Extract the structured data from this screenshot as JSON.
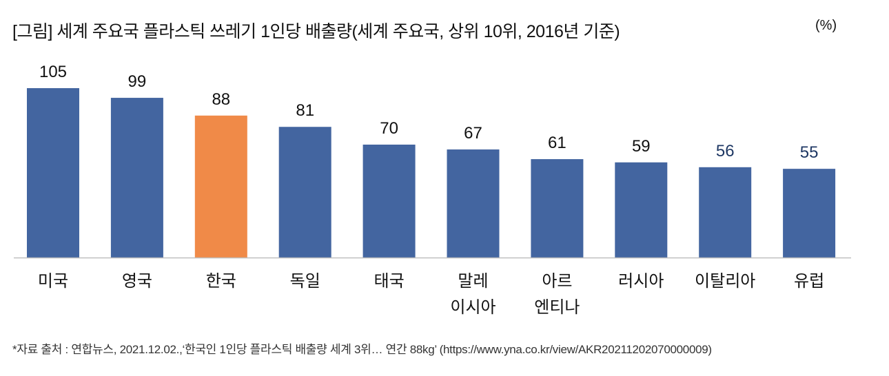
{
  "chart_data": {
    "type": "bar",
    "title": "[그림] 세계 주요국 플라스틱 쓰레기 1인당 배출량(세계 주요국, 상위 10위, 2016년 기준)",
    "unit": "(%)",
    "categories": [
      "미국",
      "영국",
      "한국",
      "독일",
      "태국",
      "말레\n이시아",
      "아르\n엔티나",
      "러시아",
      "이탈리아",
      "유럽"
    ],
    "values": [
      105,
      99,
      88,
      81,
      70,
      67,
      61,
      59,
      56,
      55
    ],
    "ylim": [
      0,
      105
    ],
    "highlight_index": 2,
    "xlabel": "",
    "ylabel": "",
    "grid": false,
    "colors": {
      "bar": "#4365a0",
      "highlight": "#f08a48",
      "label": "#111111",
      "label_alt": "#1f3864"
    }
  },
  "footnote": "*자료 출처 : 연합뉴스, 2021.12.02.,‘한국인 1인당 플라스틱 배출량 세계 3위… 연간 88kg’ (https://www.yna.co.kr/view/AKR20211202070000009)"
}
